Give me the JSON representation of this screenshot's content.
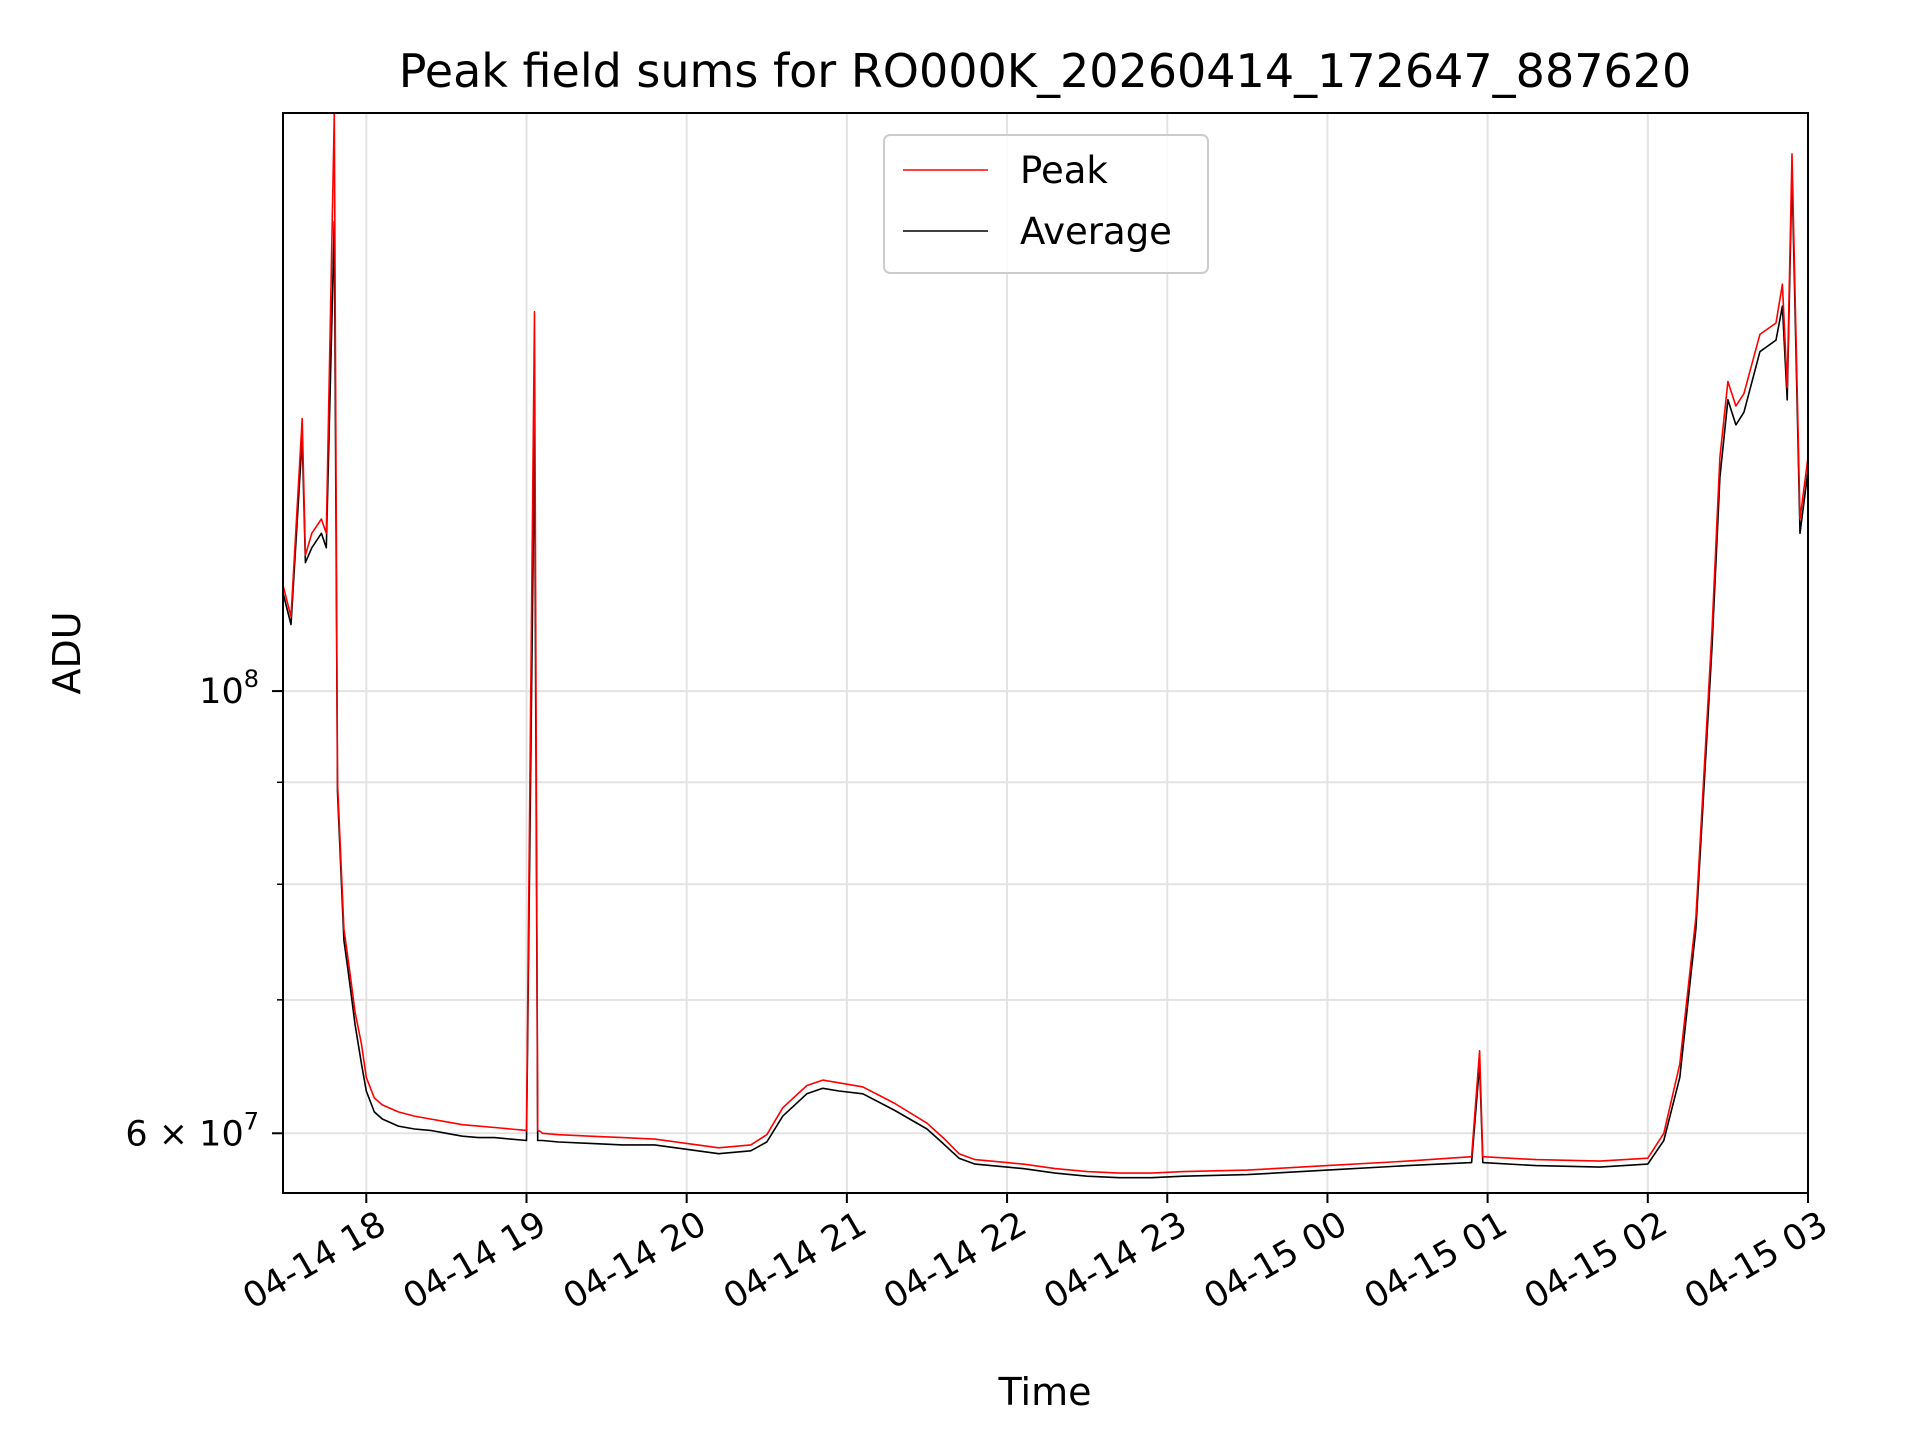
{
  "chart_data": {
    "type": "line",
    "title": "Peak field sums for RO000K_20260414_172647_887620",
    "xlabel": "Time",
    "ylabel": "ADU",
    "yscale": "log",
    "ylim": [
      56000000.0,
      195000000.0
    ],
    "xlim_hours": [
      17.48,
      27.0
    ],
    "x_ticks": [
      {
        "hour": 18,
        "label": "04-14 18"
      },
      {
        "hour": 19,
        "label": "04-14 19"
      },
      {
        "hour": 20,
        "label": "04-14 20"
      },
      {
        "hour": 21,
        "label": "04-14 21"
      },
      {
        "hour": 22,
        "label": "04-14 22"
      },
      {
        "hour": 23,
        "label": "04-14 23"
      },
      {
        "hour": 24,
        "label": "04-15 00"
      },
      {
        "hour": 25,
        "label": "04-15 01"
      },
      {
        "hour": 26,
        "label": "04-15 02"
      },
      {
        "hour": 27,
        "label": "04-15 03"
      }
    ],
    "y_major_ticks": [
      {
        "value": 60000000,
        "base": "6 × 10",
        "exp": "7"
      },
      {
        "value": 100000000,
        "base": "10",
        "exp": "8"
      }
    ],
    "y_minor_ticks": [
      60000000,
      70000000,
      80000000,
      90000000,
      100000000
    ],
    "grid": true,
    "legend": {
      "position": "top-center",
      "entries": [
        "Peak",
        "Average"
      ]
    },
    "series": [
      {
        "name": "Average",
        "color": "#000000",
        "x": [
          17.48,
          17.53,
          17.6,
          17.62,
          17.66,
          17.72,
          17.75,
          17.8,
          17.82,
          17.86,
          17.88,
          17.9,
          17.93,
          17.97,
          18.0,
          18.05,
          18.1,
          18.2,
          18.3,
          18.4,
          18.5,
          18.6,
          18.7,
          18.8,
          18.9,
          19.0,
          19.05,
          19.07,
          19.09,
          19.1,
          19.2,
          19.4,
          19.6,
          19.8,
          20.0,
          20.2,
          20.4,
          20.5,
          20.6,
          20.75,
          20.85,
          20.95,
          21.1,
          21.3,
          21.5,
          21.6,
          21.7,
          21.8,
          21.9,
          22.0,
          22.1,
          22.3,
          22.5,
          22.7,
          22.9,
          23.1,
          23.5,
          24.0,
          24.5,
          24.9,
          24.95,
          24.97,
          25.3,
          25.7,
          26.0,
          26.1,
          26.2,
          26.3,
          26.4,
          26.45,
          26.5,
          26.55,
          26.6,
          26.7,
          26.8,
          26.84,
          26.87,
          26.9,
          26.95,
          27.0
        ],
        "y": [
          112000000,
          108000000,
          134000000,
          116000000,
          118000000,
          120000000,
          118000000,
          172000000,
          89000000,
          75000000,
          73000000,
          71000000,
          68000000,
          65000000,
          63000000,
          61500000,
          61000000,
          60500000,
          60300000,
          60200000,
          60000000,
          59800000,
          59700000,
          59700000,
          59600000,
          59500000,
          135000000,
          59500000,
          59500000,
          59500000,
          59400000,
          59300000,
          59200000,
          59200000,
          58900000,
          58600000,
          58800000,
          59400000,
          61200000,
          62800000,
          63200000,
          63000000,
          62800000,
          61600000,
          60300000,
          59300000,
          58300000,
          57900000,
          57800000,
          57700000,
          57600000,
          57300000,
          57100000,
          57000000,
          57000000,
          57100000,
          57200000,
          57500000,
          57800000,
          58000000,
          65000000,
          58000000,
          57800000,
          57700000,
          57900000,
          59500000,
          64000000,
          76000000,
          105000000,
          128000000,
          140000000,
          136000000,
          138000000,
          148000000,
          150000000,
          156000000,
          140000000,
          182000000,
          120000000,
          129000000
        ]
      },
      {
        "name": "Peak",
        "color": "#ff0000",
        "x": [
          17.48,
          17.53,
          17.6,
          17.62,
          17.66,
          17.72,
          17.75,
          17.8,
          17.82,
          17.86,
          17.88,
          17.9,
          17.93,
          17.97,
          18.0,
          18.05,
          18.1,
          18.2,
          18.3,
          18.4,
          18.5,
          18.6,
          18.7,
          18.8,
          18.9,
          19.0,
          19.05,
          19.07,
          19.09,
          19.1,
          19.2,
          19.4,
          19.6,
          19.8,
          20.0,
          20.2,
          20.4,
          20.5,
          20.6,
          20.75,
          20.85,
          20.95,
          21.1,
          21.3,
          21.5,
          21.6,
          21.7,
          21.8,
          21.9,
          22.0,
          22.1,
          22.3,
          22.5,
          22.7,
          22.9,
          23.1,
          23.5,
          24.0,
          24.5,
          24.9,
          24.95,
          24.97,
          25.3,
          25.7,
          26.0,
          26.1,
          26.2,
          26.3,
          26.4,
          26.45,
          26.5,
          26.55,
          26.6,
          26.7,
          26.8,
          26.84,
          26.87,
          26.9,
          26.95,
          27.0
        ],
        "y": [
          113000000,
          109000000,
          137000000,
          117000000,
          120000000,
          122000000,
          120000000,
          195000000,
          90000000,
          76000000,
          74000000,
          72000000,
          69000000,
          66500000,
          64000000,
          62500000,
          62000000,
          61500000,
          61200000,
          61000000,
          60800000,
          60600000,
          60500000,
          60400000,
          60300000,
          60200000,
          155000000,
          60200000,
          60100000,
          60000000,
          59900000,
          59800000,
          59700000,
          59600000,
          59300000,
          59000000,
          59200000,
          59900000,
          61800000,
          63400000,
          63800000,
          63600000,
          63300000,
          62100000,
          60700000,
          59700000,
          58600000,
          58200000,
          58100000,
          58000000,
          57900000,
          57600000,
          57400000,
          57300000,
          57300000,
          57400000,
          57500000,
          57800000,
          58100000,
          58400000,
          66000000,
          58400000,
          58200000,
          58100000,
          58300000,
          60000000,
          65000000,
          77000000,
          107000000,
          131000000,
          143000000,
          139000000,
          141000000,
          151000000,
          153000000,
          160000000,
          142000000,
          186000000,
          122000000,
          131000000
        ]
      }
    ]
  }
}
